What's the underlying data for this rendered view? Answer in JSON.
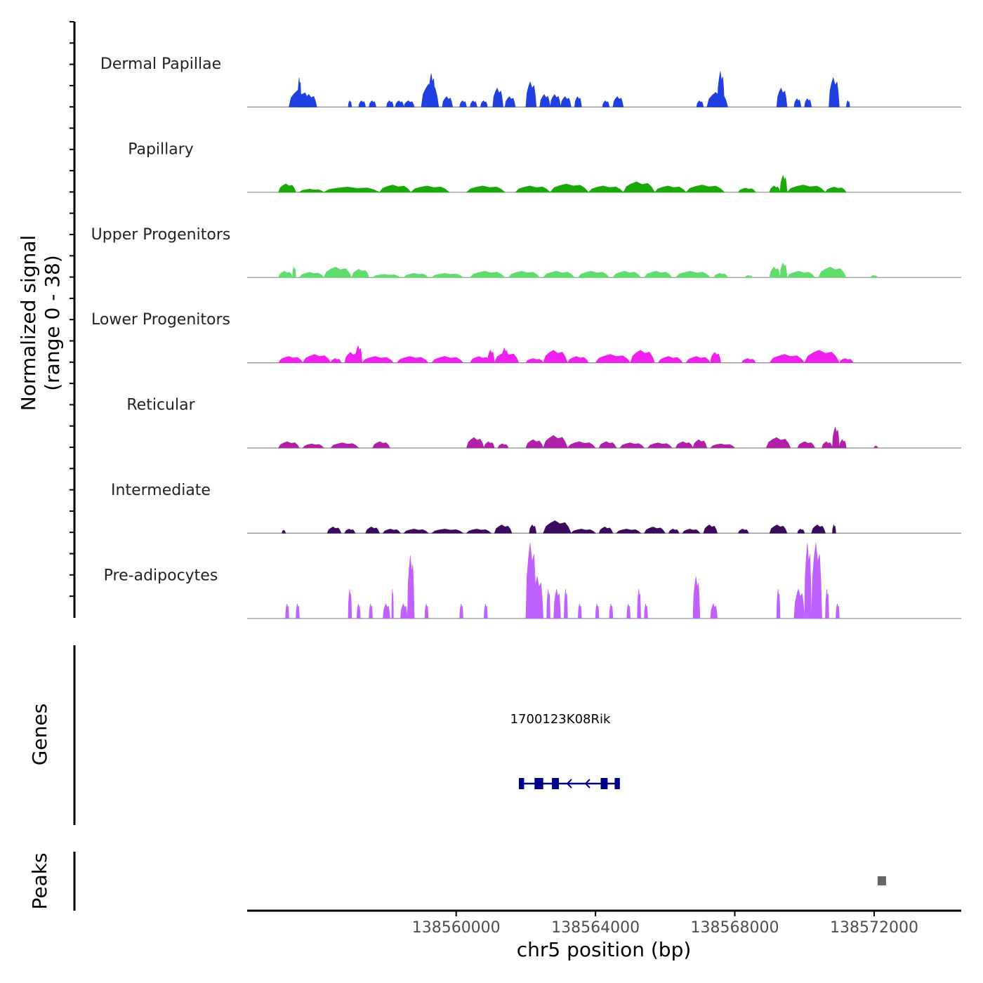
{
  "chart_data": {
    "type": "area",
    "title": "",
    "y_axis_title": "Normalized signal",
    "y_axis_subtitle": "(range 0 - 38)",
    "y_range": [
      0,
      38
    ],
    "xlabel": "chr5 position (bp)",
    "xlim": [
      138554000,
      138574500
    ],
    "x_ticks": [
      {
        "value": 138560000,
        "label": "138560000"
      },
      {
        "value": 138564000,
        "label": "138564000"
      },
      {
        "value": 138568000,
        "label": "138568000"
      },
      {
        "value": 138572000,
        "label": "138572000"
      }
    ],
    "tracks": [
      {
        "name": "Dermal Papillae",
        "color": "#1f3fe0",
        "peaks": [
          [
            138555200,
            138555800,
            8
          ],
          [
            138555450,
            138555550,
            14
          ],
          [
            138555600,
            138556000,
            6
          ],
          [
            138556900,
            138557000,
            3
          ],
          [
            138557200,
            138557400,
            3
          ],
          [
            138557500,
            138557700,
            3
          ],
          [
            138558000,
            138558200,
            3
          ],
          [
            138558250,
            138558500,
            3
          ],
          [
            138558500,
            138558800,
            3
          ],
          [
            138559000,
            138559500,
            11
          ],
          [
            138559200,
            138559400,
            16
          ],
          [
            138559600,
            138559900,
            5
          ],
          [
            138560100,
            138560300,
            3
          ],
          [
            138560400,
            138560600,
            3
          ],
          [
            138560700,
            138560900,
            3
          ],
          [
            138561050,
            138561350,
            9
          ],
          [
            138561400,
            138561700,
            5
          ],
          [
            138562000,
            138562300,
            12
          ],
          [
            138562400,
            138562700,
            6
          ],
          [
            138562700,
            138563000,
            6
          ],
          [
            138563000,
            138563300,
            5
          ],
          [
            138563400,
            138563600,
            5
          ],
          [
            138564200,
            138564400,
            3
          ],
          [
            138564500,
            138564800,
            5
          ],
          [
            138566900,
            138567100,
            3
          ],
          [
            138567200,
            138567800,
            7
          ],
          [
            138567500,
            138567700,
            17
          ],
          [
            138569200,
            138569500,
            9
          ],
          [
            138569700,
            138569900,
            4
          ],
          [
            138570000,
            138570200,
            4
          ],
          [
            138570700,
            138571000,
            14
          ],
          [
            138571200,
            138571300,
            3
          ]
        ]
      },
      {
        "name": "Papillary",
        "color": "#18a808",
        "peaks": [
          [
            138554900,
            138555400,
            4
          ],
          [
            138555500,
            138556200,
            1.5
          ],
          [
            138556200,
            138557800,
            2.5
          ],
          [
            138557800,
            138558700,
            3.5
          ],
          [
            138558700,
            138559800,
            3
          ],
          [
            138560300,
            138561400,
            3
          ],
          [
            138561700,
            138562700,
            3
          ],
          [
            138562700,
            138563800,
            4
          ],
          [
            138563800,
            138564800,
            3
          ],
          [
            138564800,
            138565700,
            5
          ],
          [
            138565700,
            138566600,
            3
          ],
          [
            138566600,
            138567700,
            3.5
          ],
          [
            138568100,
            138568600,
            2
          ],
          [
            138569000,
            138569300,
            3
          ],
          [
            138569300,
            138569500,
            8
          ],
          [
            138569500,
            138570600,
            3.5
          ],
          [
            138570600,
            138571200,
            2.5
          ]
        ]
      },
      {
        "name": "Upper Progenitors",
        "color": "#5fdc6c",
        "peaks": [
          [
            138554900,
            138555300,
            3
          ],
          [
            138555300,
            138555400,
            5
          ],
          [
            138555500,
            138556200,
            2.5
          ],
          [
            138556200,
            138557000,
            5
          ],
          [
            138557000,
            138557500,
            4
          ],
          [
            138557600,
            138558400,
            1.5
          ],
          [
            138558500,
            138559200,
            2
          ],
          [
            138559300,
            138560200,
            2
          ],
          [
            138560400,
            138561400,
            3
          ],
          [
            138561500,
            138562400,
            3
          ],
          [
            138562500,
            138563400,
            3
          ],
          [
            138563500,
            138564400,
            3
          ],
          [
            138564500,
            138565300,
            3
          ],
          [
            138565400,
            138566200,
            3
          ],
          [
            138566300,
            138567300,
            3
          ],
          [
            138567400,
            138567800,
            2
          ],
          [
            138568300,
            138568500,
            1
          ],
          [
            138569000,
            138569300,
            5
          ],
          [
            138569300,
            138569500,
            7
          ],
          [
            138569500,
            138570300,
            3
          ],
          [
            138570400,
            138571200,
            5
          ],
          [
            138571900,
            138572100,
            1
          ]
        ]
      },
      {
        "name": "Lower Progenitors",
        "color": "#f020ec",
        "peaks": [
          [
            138554900,
            138555600,
            3
          ],
          [
            138555600,
            138556400,
            4
          ],
          [
            138556400,
            138556700,
            2
          ],
          [
            138556800,
            138557200,
            5
          ],
          [
            138557100,
            138557300,
            8
          ],
          [
            138557300,
            138558200,
            3
          ],
          [
            138558300,
            138559200,
            3
          ],
          [
            138559300,
            138560200,
            3
          ],
          [
            138560400,
            138561000,
            3
          ],
          [
            138560900,
            138561100,
            6
          ],
          [
            138561100,
            138561800,
            5
          ],
          [
            138561300,
            138561500,
            7
          ],
          [
            138562000,
            138562500,
            2
          ],
          [
            138562500,
            138563200,
            6
          ],
          [
            138563200,
            138563800,
            3
          ],
          [
            138564000,
            138565000,
            4
          ],
          [
            138565000,
            138565700,
            6
          ],
          [
            138565800,
            138566500,
            3
          ],
          [
            138566600,
            138567300,
            3
          ],
          [
            138567300,
            138567600,
            5
          ],
          [
            138568200,
            138568600,
            2
          ],
          [
            138569000,
            138570000,
            4
          ],
          [
            138570000,
            138571000,
            6
          ],
          [
            138571000,
            138571400,
            2
          ]
        ]
      },
      {
        "name": "Reticular",
        "color": "#b020a8",
        "peaks": [
          [
            138554900,
            138555500,
            3
          ],
          [
            138555600,
            138556200,
            2
          ],
          [
            138556400,
            138557200,
            2.5
          ],
          [
            138557600,
            138558100,
            3
          ],
          [
            138560300,
            138560800,
            5
          ],
          [
            138560800,
            138561100,
            3
          ],
          [
            138561200,
            138561500,
            2
          ],
          [
            138562000,
            138562500,
            4
          ],
          [
            138562500,
            138563200,
            6
          ],
          [
            138563200,
            138564000,
            3
          ],
          [
            138564100,
            138564600,
            3
          ],
          [
            138564700,
            138565400,
            2.5
          ],
          [
            138565500,
            138566200,
            2.5
          ],
          [
            138566300,
            138566800,
            3
          ],
          [
            138566800,
            138567200,
            4
          ],
          [
            138567300,
            138568000,
            2
          ],
          [
            138568900,
            138569600,
            5
          ],
          [
            138569800,
            138570300,
            3
          ],
          [
            138570500,
            138570800,
            3
          ],
          [
            138570800,
            138571000,
            10
          ],
          [
            138571000,
            138571200,
            4
          ],
          [
            138572000,
            138572100,
            1
          ]
        ]
      },
      {
        "name": "Intermediate",
        "color": "#3d0a5e",
        "peaks": [
          [
            138555000,
            138555100,
            1.5
          ],
          [
            138556300,
            138556700,
            3
          ],
          [
            138556800,
            138557100,
            2
          ],
          [
            138557400,
            138557800,
            3
          ],
          [
            138557900,
            138558400,
            2
          ],
          [
            138558500,
            138559200,
            2
          ],
          [
            138559300,
            138560200,
            2
          ],
          [
            138560300,
            138561000,
            2
          ],
          [
            138561100,
            138561600,
            4
          ],
          [
            138562100,
            138562300,
            4
          ],
          [
            138562500,
            138563300,
            6
          ],
          [
            138563300,
            138564000,
            2
          ],
          [
            138564100,
            138564500,
            3
          ],
          [
            138564600,
            138565300,
            2
          ],
          [
            138565400,
            138566000,
            3
          ],
          [
            138566100,
            138566400,
            2
          ],
          [
            138566500,
            138567000,
            2
          ],
          [
            138567100,
            138567500,
            4
          ],
          [
            138568100,
            138568400,
            2
          ],
          [
            138569000,
            138569500,
            4
          ],
          [
            138569800,
            138570000,
            2
          ],
          [
            138570200,
            138570600,
            4
          ],
          [
            138570800,
            138570900,
            4
          ]
        ]
      },
      {
        "name": "Pre-adipocytes",
        "color": "#c060ff",
        "peaks": [
          [
            138555100,
            138555200,
            7
          ],
          [
            138555400,
            138555500,
            7
          ],
          [
            138556900,
            138557000,
            14
          ],
          [
            138557150,
            138557250,
            7
          ],
          [
            138557500,
            138557600,
            7
          ],
          [
            138557900,
            138558100,
            7
          ],
          [
            138558150,
            138558200,
            14
          ],
          [
            138558400,
            138558600,
            7
          ],
          [
            138558600,
            138558800,
            30
          ],
          [
            138559100,
            138559200,
            7
          ],
          [
            138560100,
            138560200,
            7
          ],
          [
            138560800,
            138560900,
            7
          ],
          [
            138562000,
            138562300,
            36
          ],
          [
            138562200,
            138562500,
            20
          ],
          [
            138562600,
            138562700,
            14
          ],
          [
            138562800,
            138563000,
            14
          ],
          [
            138563100,
            138563200,
            14
          ],
          [
            138563500,
            138563600,
            7
          ],
          [
            138564000,
            138564100,
            7
          ],
          [
            138564400,
            138564500,
            7
          ],
          [
            138564900,
            138565000,
            7
          ],
          [
            138565200,
            138565300,
            14
          ],
          [
            138565400,
            138565500,
            7
          ],
          [
            138566800,
            138567000,
            20
          ],
          [
            138567300,
            138567500,
            7
          ],
          [
            138569200,
            138569300,
            14
          ],
          [
            138569700,
            138570000,
            14
          ],
          [
            138570000,
            138570200,
            36
          ],
          [
            138570200,
            138570500,
            36
          ],
          [
            138570600,
            138570700,
            14
          ],
          [
            138570900,
            138571000,
            7
          ]
        ]
      }
    ],
    "genes_track": {
      "label": "Genes",
      "gene_name": "1700123K08Rik",
      "start": 138561800,
      "end": 138564700,
      "strand": "-",
      "exons": [
        [
          138561800,
          138561950
        ],
        [
          138562250,
          138562500
        ],
        [
          138562750,
          138562950
        ],
        [
          138564150,
          138564350
        ],
        [
          138564550,
          138564700
        ]
      ]
    },
    "peaks_track": {
      "label": "Peaks",
      "regions": [
        [
          138572100,
          138572300
        ]
      ]
    }
  }
}
